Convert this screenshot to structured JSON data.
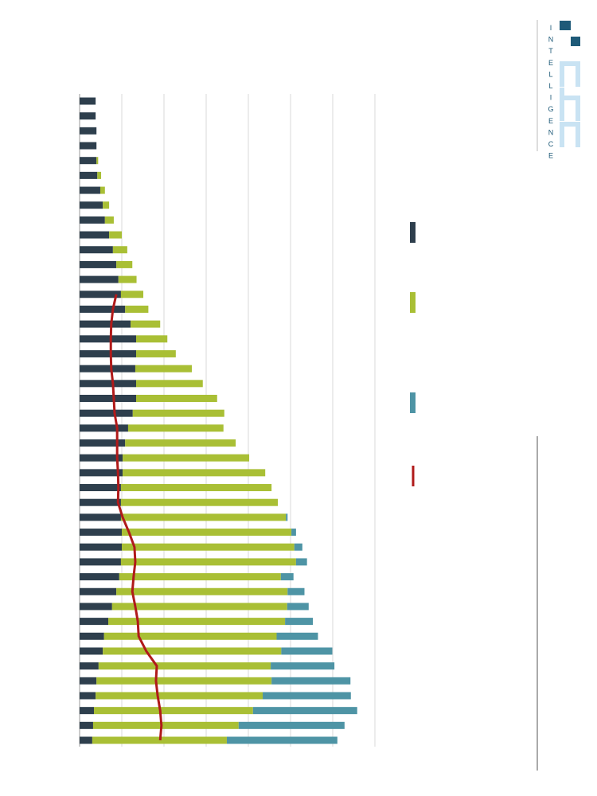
{
  "logo": {
    "text": "INTELLIGENCE"
  },
  "chart_data": {
    "type": "stacked-bar-horizontal",
    "categories": [
      null,
      null,
      null,
      null,
      null,
      null,
      null,
      null,
      null,
      null,
      null,
      null,
      null,
      null,
      null,
      null,
      null,
      null,
      null,
      null,
      null,
      null,
      null,
      null,
      null,
      null,
      null,
      null,
      null,
      null,
      null,
      null,
      null,
      null,
      null,
      null,
      null,
      null,
      null,
      null,
      null,
      null,
      null,
      null
    ],
    "series": [
      {
        "color": "#2e3f4d",
        "values": [
          0.38,
          0.38,
          0.4,
          0.4,
          0.4,
          0.42,
          0.49,
          0.55,
          0.6,
          0.7,
          0.79,
          0.87,
          0.92,
          0.98,
          1.08,
          1.21,
          1.34,
          1.34,
          1.32,
          1.34,
          1.34,
          1.26,
          1.15,
          1.08,
          1.02,
          1.02,
          0.98,
          0.98,
          0.98,
          1.0,
          1.0,
          0.98,
          0.94,
          0.87,
          0.77,
          0.68,
          0.58,
          0.55,
          0.45,
          0.4,
          0.38,
          0.34,
          0.32,
          0.3
        ]
      },
      {
        "color": "#a9bf35",
        "values": [
          0,
          0,
          0,
          0,
          0.04,
          0.09,
          0.11,
          0.15,
          0.21,
          0.3,
          0.34,
          0.38,
          0.43,
          0.53,
          0.55,
          0.7,
          0.74,
          0.94,
          1.34,
          1.58,
          1.92,
          2.17,
          2.26,
          2.62,
          3.0,
          3.38,
          3.57,
          3.72,
          3.91,
          4.02,
          4.09,
          4.15,
          3.83,
          4.06,
          4.15,
          4.19,
          4.09,
          4.23,
          4.08,
          4.15,
          3.96,
          3.77,
          3.45,
          3.19
        ]
      },
      {
        "color": "#4e94a5",
        "values": [
          0,
          0,
          0,
          0,
          0,
          0,
          0,
          0,
          0,
          0,
          0,
          0,
          0,
          0,
          0,
          0,
          0,
          0,
          0,
          0,
          0,
          0,
          0,
          0,
          0,
          0,
          0,
          0,
          0.04,
          0.11,
          0.19,
          0.26,
          0.3,
          0.4,
          0.51,
          0.66,
          0.98,
          1.21,
          1.51,
          1.87,
          2.09,
          2.47,
          2.51,
          2.62
        ]
      },
      {
        "type": "line",
        "color": "#b01a1a",
        "values": [
          null,
          null,
          null,
          null,
          null,
          null,
          null,
          null,
          null,
          null,
          null,
          null,
          null,
          0.87,
          0.79,
          0.75,
          0.74,
          0.74,
          0.75,
          0.79,
          0.81,
          0.83,
          0.89,
          0.89,
          0.89,
          0.91,
          0.92,
          0.91,
          1.02,
          1.17,
          1.3,
          1.32,
          1.28,
          1.25,
          1.32,
          1.38,
          1.4,
          1.58,
          1.83,
          1.81,
          1.85,
          1.91,
          1.94,
          1.91
        ]
      }
    ],
    "xlim": [
      0,
      7
    ],
    "xticks": [
      0,
      1,
      2,
      3,
      4,
      5,
      6,
      7
    ],
    "grid": true
  }
}
